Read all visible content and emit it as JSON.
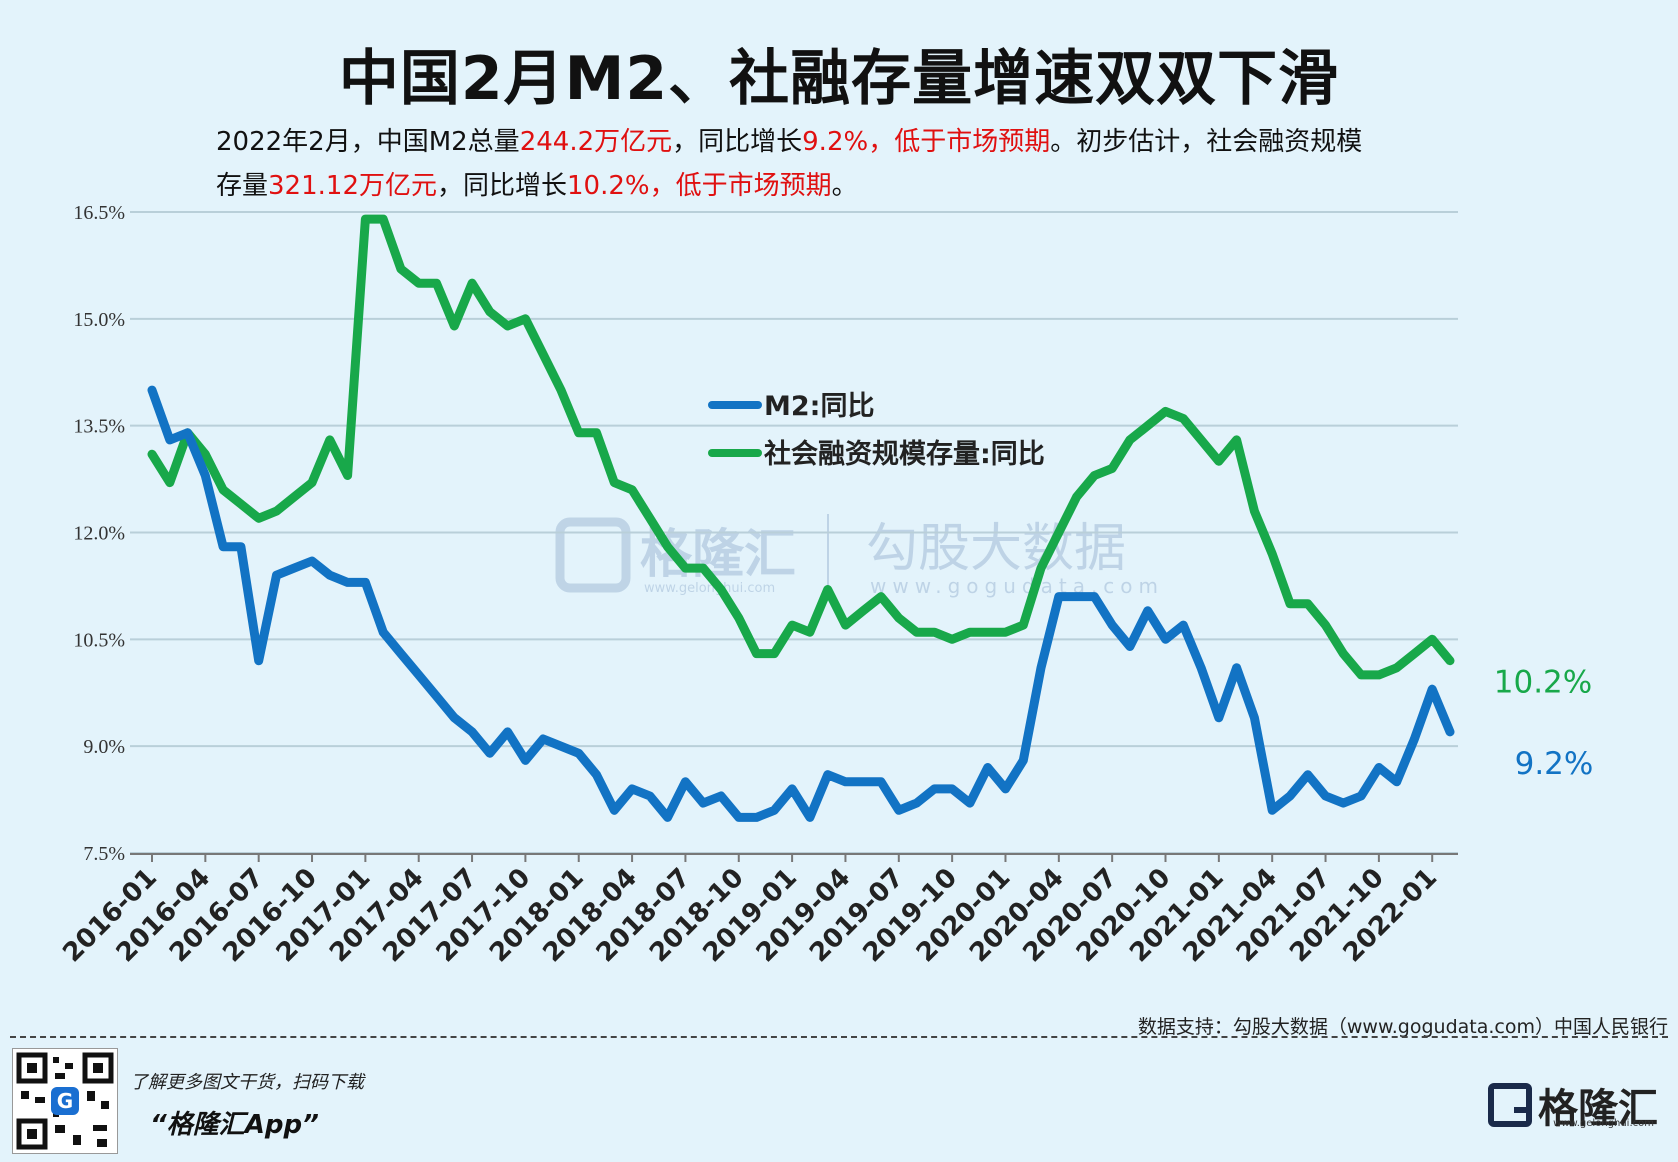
{
  "title": "中国2月M2、社融存量增速双双下滑",
  "subtitle": {
    "line1": [
      {
        "t": "2022年2月，中国M2总量",
        "red": false
      },
      {
        "t": "244.2万亿元",
        "red": true
      },
      {
        "t": "，同比增长",
        "red": false
      },
      {
        "t": "9.2%，低于市场预期",
        "red": true
      },
      {
        "t": "。初步估计，社会融资规模",
        "red": false
      }
    ],
    "line2": [
      {
        "t": "存量",
        "red": false
      },
      {
        "t": "321.12万亿元",
        "red": true
      },
      {
        "t": "，同比增长",
        "red": false
      },
      {
        "t": "10.2%，低于市场预期",
        "red": true
      },
      {
        "t": "。",
        "red": false
      }
    ]
  },
  "colors": {
    "m2": "#1273c4",
    "tsf": "#18a84a",
    "grid": "#b9cfd9",
    "axis": "#333333",
    "red": "#e01010"
  },
  "watermark": {
    "brand": "格隆汇",
    "brand_url": "www.gelonghui.com",
    "data_brand": "勾股大数据",
    "data_url": "www.gogudata.com"
  },
  "chart_data": {
    "type": "line",
    "y_ticks": [
      "16.5%",
      "15.0%",
      "13.5%",
      "12.0%",
      "10.5%",
      "9.0%",
      "7.5%"
    ],
    "ylim": [
      7.5,
      16.5
    ],
    "x_tick_labels": [
      "2016-01",
      "2016-04",
      "2016-07",
      "2016-10",
      "2017-01",
      "2017-04",
      "2017-07",
      "2017-10",
      "2018-01",
      "2018-04",
      "2018-07",
      "2018-10",
      "2019-01",
      "2019-04",
      "2019-07",
      "2019-10",
      "2020-01",
      "2020-04",
      "2020-07",
      "2020-10",
      "2021-01",
      "2021-04",
      "2021-07",
      "2021-10",
      "2022-01"
    ],
    "x_start": "2016-01",
    "x_end": "2022-02",
    "legend_position": "center",
    "series": [
      {
        "name": "M2:同比",
        "key": "m2",
        "end_label": "9.2%",
        "values": [
          14.0,
          13.3,
          13.4,
          12.8,
          11.8,
          11.8,
          10.2,
          11.4,
          11.5,
          11.6,
          11.4,
          11.3,
          11.3,
          10.6,
          10.3,
          10.0,
          9.7,
          9.4,
          9.2,
          8.9,
          9.2,
          8.8,
          9.1,
          9.0,
          8.9,
          8.6,
          8.1,
          8.4,
          8.3,
          8.0,
          8.5,
          8.2,
          8.3,
          8.0,
          8.0,
          8.1,
          8.4,
          8.0,
          8.6,
          8.5,
          8.5,
          8.5,
          8.1,
          8.2,
          8.4,
          8.4,
          8.2,
          8.7,
          8.4,
          8.8,
          10.1,
          11.1,
          11.1,
          11.1,
          10.7,
          10.4,
          10.9,
          10.5,
          10.7,
          10.1,
          9.4,
          10.1,
          9.4,
          8.1,
          8.3,
          8.6,
          8.3,
          8.2,
          8.3,
          8.7,
          8.5,
          9.1,
          9.8,
          9.2
        ]
      },
      {
        "name": "社会融资规模存量:同比",
        "key": "tsf",
        "end_label": "10.2%",
        "values": [
          13.1,
          12.7,
          13.4,
          13.1,
          12.6,
          12.4,
          12.2,
          12.3,
          12.5,
          12.7,
          13.3,
          12.8,
          16.4,
          16.4,
          15.7,
          15.5,
          15.5,
          14.9,
          15.5,
          15.1,
          14.9,
          15.0,
          14.5,
          14.0,
          13.4,
          13.4,
          12.7,
          12.6,
          12.2,
          11.8,
          11.5,
          11.5,
          11.2,
          10.8,
          10.3,
          10.3,
          10.7,
          10.6,
          11.2,
          10.7,
          10.9,
          11.1,
          10.8,
          10.6,
          10.6,
          10.5,
          10.6,
          10.6,
          10.6,
          10.7,
          11.5,
          12.0,
          12.5,
          12.8,
          12.9,
          13.3,
          13.5,
          13.7,
          13.6,
          13.3,
          13.0,
          13.3,
          12.3,
          11.7,
          11.0,
          11.0,
          10.7,
          10.3,
          10.0,
          10.0,
          10.1,
          10.3,
          10.5,
          10.2
        ]
      }
    ]
  },
  "source": "数据支持：勾股大数据（www.gogudata.com）中国人民银行",
  "footer": {
    "line1": "了解更多图文干货，扫码下载",
    "app": "“格隆汇App”"
  },
  "brand": {
    "name": "格隆汇",
    "url": "www.gelonghui.com"
  }
}
